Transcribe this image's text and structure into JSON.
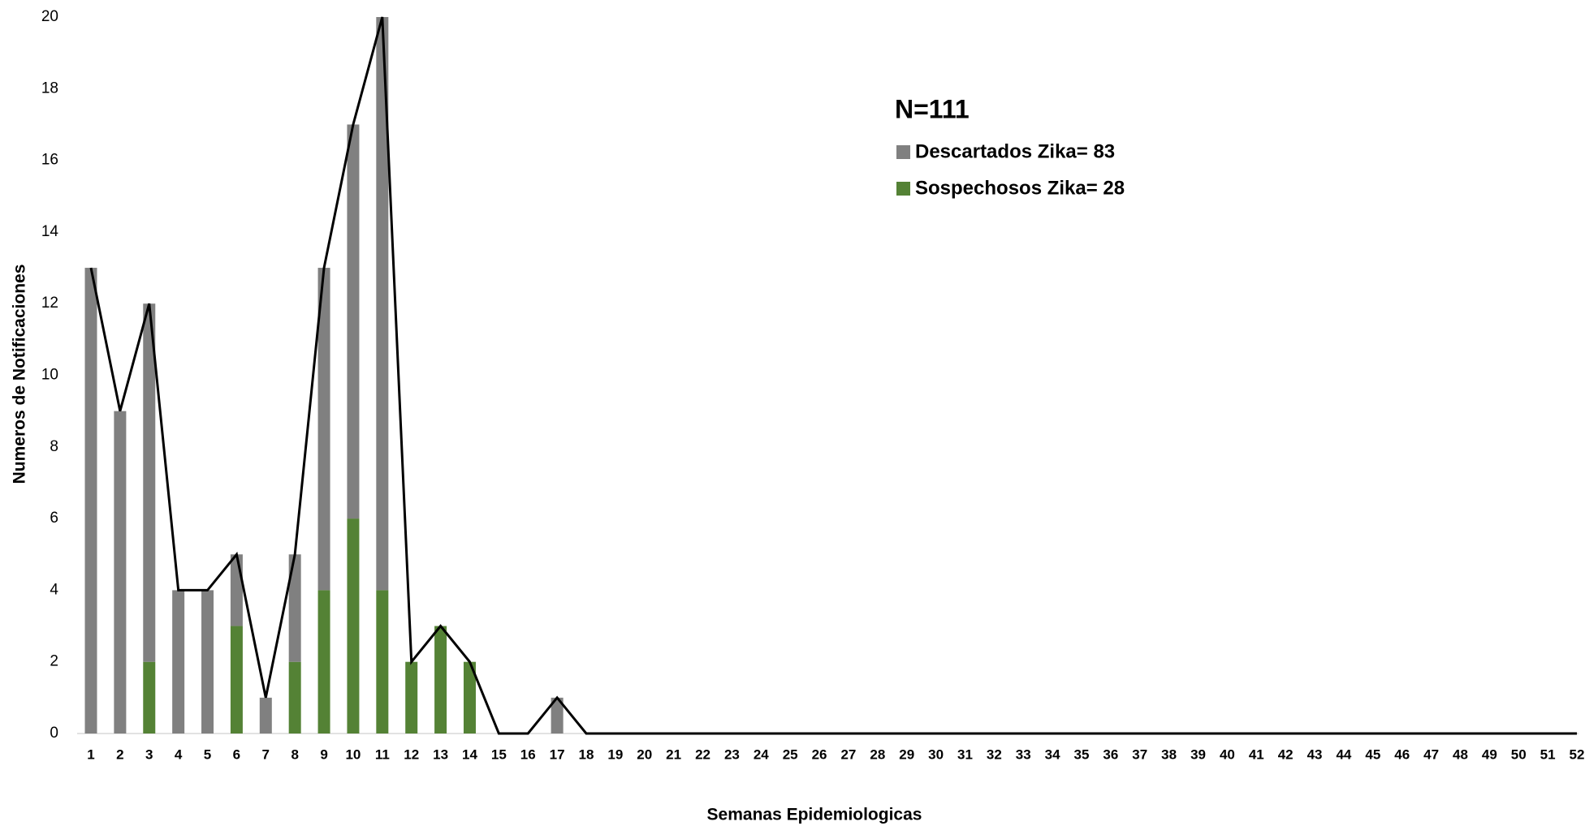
{
  "chart_data": {
    "type": "bar",
    "stacked": true,
    "annotation": "N=111",
    "x_label": "Semanas Epidemiologicas",
    "y_label": "Numeros de Notificaciones",
    "categories": [
      "1",
      "2",
      "3",
      "4",
      "5",
      "6",
      "7",
      "8",
      "9",
      "10",
      "11",
      "12",
      "13",
      "14",
      "15",
      "16",
      "17",
      "18",
      "19",
      "20",
      "21",
      "22",
      "23",
      "24",
      "25",
      "26",
      "27",
      "28",
      "29",
      "30",
      "31",
      "32",
      "33",
      "34",
      "35",
      "36",
      "37",
      "38",
      "39",
      "40",
      "41",
      "42",
      "43",
      "44",
      "45",
      "46",
      "47",
      "48",
      "49",
      "50",
      "51",
      "52"
    ],
    "series": [
      {
        "name": "Sospechosos Zika= 28",
        "color": "#548235",
        "values": [
          0,
          0,
          2,
          0,
          0,
          3,
          0,
          2,
          4,
          6,
          4,
          2,
          3,
          2,
          0,
          0,
          0,
          0,
          0,
          0,
          0,
          0,
          0,
          0,
          0,
          0,
          0,
          0,
          0,
          0,
          0,
          0,
          0,
          0,
          0,
          0,
          0,
          0,
          0,
          0,
          0,
          0,
          0,
          0,
          0,
          0,
          0,
          0,
          0,
          0,
          0,
          0
        ]
      },
      {
        "name": "Descartados Zika= 83",
        "color": "#808080",
        "values": [
          13,
          9,
          10,
          4,
          4,
          2,
          1,
          3,
          9,
          11,
          16,
          0,
          0,
          0,
          0,
          0,
          1,
          0,
          0,
          0,
          0,
          0,
          0,
          0,
          0,
          0,
          0,
          0,
          0,
          0,
          0,
          0,
          0,
          0,
          0,
          0,
          0,
          0,
          0,
          0,
          0,
          0,
          0,
          0,
          0,
          0,
          0,
          0,
          0,
          0,
          0,
          0
        ]
      }
    ],
    "line": {
      "color": "#000000",
      "values": [
        13,
        9,
        12,
        4,
        4,
        5,
        1,
        5,
        13,
        17,
        20,
        2,
        3,
        2,
        0,
        0,
        1,
        0,
        0,
        0,
        0,
        0,
        0,
        0,
        0,
        0,
        0,
        0,
        0,
        0,
        0,
        0,
        0,
        0,
        0,
        0,
        0,
        0,
        0,
        0,
        0,
        0,
        0,
        0,
        0,
        0,
        0,
        0,
        0,
        0,
        0,
        0
      ]
    },
    "ylim": [
      0,
      20
    ],
    "yticks": [
      0,
      2,
      4,
      6,
      8,
      10,
      12,
      14,
      16,
      18,
      20
    ]
  }
}
